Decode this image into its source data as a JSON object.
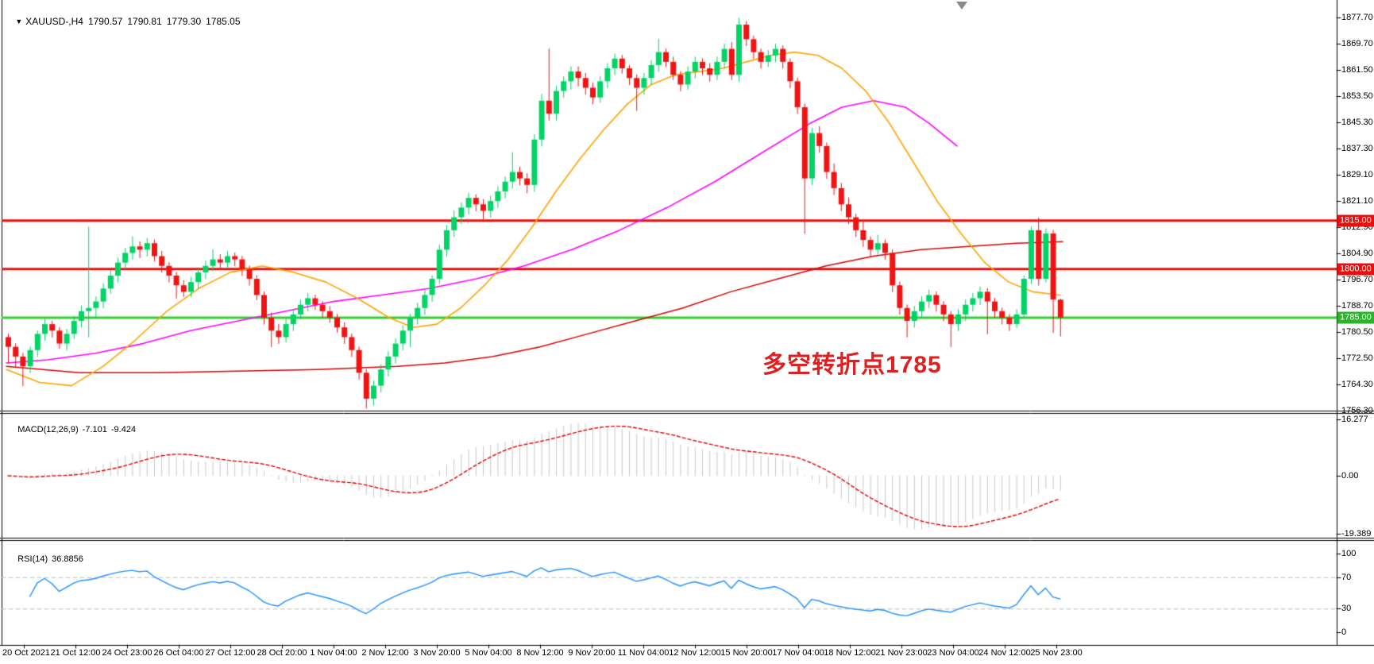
{
  "header": {
    "symbol_period": "XAUUSD-,H4",
    "open": "1790.57",
    "high": "1790.81",
    "low": "1779.30",
    "close": "1785.05"
  },
  "annotation": {
    "text": "多空转折点1785",
    "color": "#de2020"
  },
  "indicators": {
    "macd": {
      "label": "MACD(12,26,9)",
      "main_value": "-7.101",
      "signal_value": "-9.424",
      "scale_max": "16.277",
      "scale_zero": "0.00",
      "scale_min": "-19.389"
    },
    "rsi": {
      "label": "RSI(14)",
      "value": "36.8856",
      "scale": [
        "100",
        "70",
        "30",
        "0"
      ],
      "level_values": [
        70,
        30
      ]
    }
  },
  "price_axis": {
    "ticks": [
      "1877.70",
      "1869.70",
      "1861.50",
      "1853.50",
      "1845.30",
      "1837.30",
      "1829.10",
      "1821.10",
      "1812.90",
      "1804.90",
      "1796.70",
      "1788.70",
      "1780.50",
      "1772.50",
      "1764.30",
      "1756.30"
    ],
    "values": [
      1877.7,
      1869.7,
      1861.5,
      1853.5,
      1845.3,
      1837.3,
      1829.1,
      1821.1,
      1812.9,
      1804.9,
      1796.7,
      1788.7,
      1780.5,
      1772.5,
      1764.3,
      1756.3
    ]
  },
  "time_axis": {
    "labels": [
      "20 Oct 2021",
      "21 Oct 12:00",
      "24 Oct 23:00",
      "26 Oct 04:00",
      "27 Oct 12:00",
      "28 Oct 20:00",
      "1 Nov 04:00",
      "2 Nov 12:00",
      "3 Nov 20:00",
      "5 Nov 04:00",
      "8 Nov 12:00",
      "9 Nov 20:00",
      "11 Nov 04:00",
      "12 Nov 12:00",
      "15 Nov 20:00",
      "17 Nov 04:00",
      "18 Nov 12:00",
      "21 Nov 23:00",
      "23 Nov 04:00",
      "24 Nov 12:00",
      "25 Nov 23:00"
    ]
  },
  "hlines": [
    {
      "price": 1815.0,
      "label": "1815.00",
      "line_color": "#ef0e0e",
      "badge_color": "#e80f0f"
    },
    {
      "price": 1800.0,
      "label": "1800.00",
      "line_color": "#ef0e0e",
      "badge_color": "#e80f0f"
    },
    {
      "price": 1785.0,
      "label": "1785.00",
      "line_color": "#30d030",
      "badge_color": "#2eb12e"
    }
  ],
  "colors": {
    "bull": "#00d465",
    "bear": "#ef1414",
    "ma_fast": "#ffa400",
    "ma_mid": "#ff00ff",
    "ma_slow": "#d40404",
    "macd_hist": "#c8c8c8",
    "macd_signal": "#e00000",
    "rsi_line": "#1e90ff",
    "rsi_levels": "#bdbdbd",
    "axis": "#000000",
    "background": "#ffffff"
  },
  "chart_data": {
    "type": "candlestick",
    "symbol": "XAUUSD-",
    "timeframe": "H4",
    "ylim": [
      1756.3,
      1877.7
    ],
    "macd_ylim": [
      -19.389,
      16.277
    ],
    "rsi_ylim": [
      0,
      100
    ],
    "candles": [
      [
        1779,
        1780,
        1771,
        1776
      ],
      [
        1776,
        1777,
        1770,
        1773
      ],
      [
        1773,
        1774,
        1764,
        1770
      ],
      [
        1770,
        1776,
        1768,
        1775
      ],
      [
        1775,
        1781,
        1773,
        1780
      ],
      [
        1780,
        1784.5,
        1778,
        1783
      ],
      [
        1783,
        1784,
        1779,
        1781
      ],
      [
        1781,
        1782,
        1775.5,
        1777
      ],
      [
        1777,
        1781.5,
        1775,
        1780
      ],
      [
        1780,
        1785.5,
        1778.5,
        1784
      ],
      [
        1784,
        1788.5,
        1782,
        1787
      ],
      [
        1787,
        1813,
        1779,
        1788
      ],
      [
        1788,
        1791.5,
        1785,
        1790
      ],
      [
        1790,
        1795.5,
        1788,
        1794
      ],
      [
        1794,
        1799.5,
        1792.5,
        1798
      ],
      [
        1798,
        1803.5,
        1796,
        1802
      ],
      [
        1802,
        1806.5,
        1800,
        1805
      ],
      [
        1805,
        1810,
        1803,
        1807
      ],
      [
        1807,
        1808.5,
        1803.5,
        1806
      ],
      [
        1806,
        1809.5,
        1804,
        1808
      ],
      [
        1808,
        1809,
        1802.5,
        1804
      ],
      [
        1804,
        1805.5,
        1799,
        1801
      ],
      [
        1801,
        1802,
        1796,
        1798
      ],
      [
        1798,
        1799,
        1791,
        1795
      ],
      [
        1795,
        1796.5,
        1791.5,
        1793
      ],
      [
        1793,
        1797.5,
        1791.5,
        1796
      ],
      [
        1796,
        1800.5,
        1794,
        1799
      ],
      [
        1799,
        1802.5,
        1797,
        1801
      ],
      [
        1801,
        1806,
        1799.5,
        1803
      ],
      [
        1803,
        1804.5,
        1800,
        1802
      ],
      [
        1802,
        1805.5,
        1800.5,
        1804
      ],
      [
        1804,
        1805,
        1801,
        1803
      ],
      [
        1803,
        1804,
        1798,
        1800
      ],
      [
        1800,
        1801,
        1795,
        1797
      ],
      [
        1797,
        1798,
        1790.5,
        1792
      ],
      [
        1792,
        1793,
        1783,
        1785
      ],
      [
        1785,
        1786.5,
        1776,
        1781
      ],
      [
        1781,
        1783,
        1777,
        1779
      ],
      [
        1779,
        1784.5,
        1777.5,
        1783
      ],
      [
        1783,
        1787.5,
        1781,
        1786
      ],
      [
        1786,
        1790.5,
        1784.5,
        1789
      ],
      [
        1789,
        1792.5,
        1787,
        1791
      ],
      [
        1791,
        1792,
        1787.5,
        1789
      ],
      [
        1789,
        1790,
        1785,
        1787
      ],
      [
        1787,
        1788.5,
        1783.5,
        1785
      ],
      [
        1785,
        1786,
        1780.5,
        1782
      ],
      [
        1782,
        1783.5,
        1777,
        1779
      ],
      [
        1779,
        1780,
        1773,
        1775
      ],
      [
        1775,
        1776,
        1766,
        1768
      ],
      [
        1768,
        1769,
        1757,
        1760
      ],
      [
        1760,
        1765.5,
        1758,
        1764
      ],
      [
        1764,
        1770.5,
        1762,
        1769
      ],
      [
        1769,
        1774.5,
        1767,
        1773
      ],
      [
        1773,
        1778.5,
        1771,
        1777
      ],
      [
        1777,
        1782.5,
        1775,
        1781
      ],
      [
        1781,
        1786,
        1776,
        1785
      ],
      [
        1785,
        1789.5,
        1783,
        1788
      ],
      [
        1788,
        1793.5,
        1786,
        1792
      ],
      [
        1792,
        1798,
        1790,
        1797
      ],
      [
        1797,
        1807.5,
        1795.5,
        1806
      ],
      [
        1806,
        1813.5,
        1804,
        1812
      ],
      [
        1812,
        1818,
        1810,
        1816
      ],
      [
        1816,
        1820.5,
        1814,
        1819
      ],
      [
        1819,
        1823.5,
        1817,
        1822
      ],
      [
        1822,
        1823,
        1818,
        1820
      ],
      [
        1820,
        1821.5,
        1815.5,
        1818
      ],
      [
        1818,
        1822.5,
        1816,
        1821
      ],
      [
        1821,
        1825.5,
        1819,
        1824
      ],
      [
        1824,
        1828.5,
        1822,
        1827
      ],
      [
        1827,
        1836,
        1825,
        1830
      ],
      [
        1830,
        1831.5,
        1826,
        1828
      ],
      [
        1828,
        1829.5,
        1823.5,
        1826
      ],
      [
        1826,
        1841.5,
        1824,
        1840
      ],
      [
        1840,
        1854,
        1838,
        1852
      ],
      [
        1852,
        1868,
        1846,
        1848
      ],
      [
        1848,
        1856.5,
        1846,
        1855
      ],
      [
        1855,
        1859.5,
        1853,
        1858
      ],
      [
        1858,
        1862.5,
        1855.5,
        1861
      ],
      [
        1861,
        1862.5,
        1856.5,
        1859
      ],
      [
        1859,
        1860.5,
        1854,
        1856
      ],
      [
        1856,
        1857.5,
        1851,
        1853
      ],
      [
        1853,
        1859.5,
        1851.5,
        1858
      ],
      [
        1858,
        1863.5,
        1856,
        1862
      ],
      [
        1862,
        1866.5,
        1860,
        1865
      ],
      [
        1865,
        1866,
        1860.5,
        1862
      ],
      [
        1862,
        1863,
        1857,
        1859
      ],
      [
        1859,
        1860,
        1849,
        1856
      ],
      [
        1856,
        1860.5,
        1854,
        1859
      ],
      [
        1859,
        1864.5,
        1857,
        1863
      ],
      [
        1863,
        1871,
        1861,
        1867
      ],
      [
        1867,
        1868,
        1862.5,
        1864
      ],
      [
        1864,
        1865.5,
        1858.5,
        1860
      ],
      [
        1860,
        1861,
        1855,
        1857
      ],
      [
        1857,
        1862.5,
        1855.5,
        1861
      ],
      [
        1861,
        1865.5,
        1859,
        1864
      ],
      [
        1864,
        1865,
        1860,
        1862
      ],
      [
        1862,
        1863.5,
        1858,
        1860
      ],
      [
        1860,
        1865.5,
        1858.5,
        1864
      ],
      [
        1864,
        1869.5,
        1862,
        1868
      ],
      [
        1868,
        1870,
        1858.5,
        1860
      ],
      [
        1860,
        1877.5,
        1858,
        1875.5
      ],
      [
        1875.5,
        1876.5,
        1869,
        1871
      ],
      [
        1871,
        1872,
        1865,
        1867
      ],
      [
        1867,
        1868,
        1862,
        1864
      ],
      [
        1864,
        1867.5,
        1862.5,
        1866
      ],
      [
        1866,
        1869.5,
        1864,
        1868
      ],
      [
        1868,
        1869,
        1862,
        1864
      ],
      [
        1864,
        1865,
        1856,
        1858
      ],
      [
        1858,
        1859,
        1848,
        1850
      ],
      [
        1850,
        1851,
        1811,
        1828
      ],
      [
        1828,
        1843.5,
        1826,
        1842
      ],
      [
        1842,
        1844,
        1836,
        1838
      ],
      [
        1838,
        1839,
        1828,
        1830
      ],
      [
        1830,
        1832.5,
        1823,
        1825
      ],
      [
        1825,
        1826.5,
        1818,
        1820
      ],
      [
        1820,
        1822,
        1814,
        1816
      ],
      [
        1816,
        1817,
        1810,
        1812
      ],
      [
        1812,
        1814.5,
        1807,
        1809
      ],
      [
        1809,
        1810,
        1804,
        1806
      ],
      [
        1806,
        1810.5,
        1804.5,
        1808
      ],
      [
        1808,
        1809,
        1803,
        1805
      ],
      [
        1805,
        1806,
        1793,
        1795
      ],
      [
        1795,
        1796,
        1786,
        1788
      ],
      [
        1788,
        1789,
        1779,
        1784
      ],
      [
        1784,
        1788.5,
        1782,
        1787
      ],
      [
        1787,
        1791.5,
        1785,
        1790
      ],
      [
        1790,
        1793.5,
        1788,
        1792
      ],
      [
        1792,
        1793,
        1787,
        1789
      ],
      [
        1789,
        1790,
        1784,
        1786
      ],
      [
        1786,
        1787,
        1776,
        1783
      ],
      [
        1783,
        1787.5,
        1781,
        1786
      ],
      [
        1786,
        1790.5,
        1784,
        1789
      ],
      [
        1789,
        1792.5,
        1787,
        1791
      ],
      [
        1791,
        1794.5,
        1789,
        1793
      ],
      [
        1793,
        1794,
        1780,
        1790
      ],
      [
        1790,
        1791,
        1785,
        1787
      ],
      [
        1787,
        1788,
        1783,
        1785
      ],
      [
        1785,
        1786,
        1781,
        1783
      ],
      [
        1783,
        1787.5,
        1782,
        1786
      ],
      [
        1786,
        1798,
        1785,
        1797
      ],
      [
        1797,
        1813,
        1795.5,
        1812
      ],
      [
        1812,
        1815.8,
        1795,
        1797
      ],
      [
        1797,
        1812.5,
        1796,
        1811
      ],
      [
        1811,
        1812,
        1780.4,
        1790.6
      ],
      [
        1790.57,
        1790.81,
        1779.3,
        1785.05
      ]
    ],
    "ma_fast_points": [
      [
        8,
        1769
      ],
      [
        50,
        1765
      ],
      [
        90,
        1764
      ],
      [
        130,
        1770
      ],
      [
        170,
        1778
      ],
      [
        210,
        1787
      ],
      [
        250,
        1794
      ],
      [
        290,
        1799
      ],
      [
        330,
        1801
      ],
      [
        370,
        1799
      ],
      [
        410,
        1796
      ],
      [
        450,
        1791
      ],
      [
        490,
        1785
      ],
      [
        520,
        1782
      ],
      [
        550,
        1783
      ],
      [
        580,
        1788
      ],
      [
        610,
        1795
      ],
      [
        640,
        1803
      ],
      [
        670,
        1813
      ],
      [
        700,
        1824
      ],
      [
        730,
        1834
      ],
      [
        760,
        1843
      ],
      [
        790,
        1851
      ],
      [
        820,
        1857
      ],
      [
        850,
        1860
      ],
      [
        880,
        1861
      ],
      [
        910,
        1862
      ],
      [
        940,
        1864
      ],
      [
        970,
        1866
      ],
      [
        1000,
        1867
      ],
      [
        1030,
        1866
      ],
      [
        1060,
        1862
      ],
      [
        1090,
        1855
      ],
      [
        1120,
        1845
      ],
      [
        1150,
        1833
      ],
      [
        1180,
        1821
      ],
      [
        1210,
        1811
      ],
      [
        1240,
        1802
      ],
      [
        1270,
        1796
      ],
      [
        1300,
        1793
      ],
      [
        1335,
        1792
      ]
    ],
    "ma_mid_points": [
      [
        8,
        1771
      ],
      [
        60,
        1772
      ],
      [
        120,
        1774
      ],
      [
        180,
        1777
      ],
      [
        240,
        1781
      ],
      [
        300,
        1784
      ],
      [
        360,
        1787
      ],
      [
        420,
        1790
      ],
      [
        480,
        1792
      ],
      [
        540,
        1794
      ],
      [
        600,
        1797
      ],
      [
        660,
        1801
      ],
      [
        720,
        1806
      ],
      [
        780,
        1812
      ],
      [
        840,
        1819
      ],
      [
        900,
        1827
      ],
      [
        960,
        1836
      ],
      [
        1020,
        1845
      ],
      [
        1060,
        1850
      ],
      [
        1100,
        1852
      ],
      [
        1140,
        1850
      ],
      [
        1170,
        1845
      ],
      [
        1205,
        1838
      ]
    ],
    "ma_slow_points": [
      [
        8,
        1770
      ],
      [
        100,
        1768
      ],
      [
        200,
        1768
      ],
      [
        300,
        1768.5
      ],
      [
        400,
        1769
      ],
      [
        500,
        1770
      ],
      [
        560,
        1771
      ],
      [
        620,
        1773
      ],
      [
        680,
        1776
      ],
      [
        740,
        1780
      ],
      [
        800,
        1784
      ],
      [
        860,
        1788
      ],
      [
        920,
        1793
      ],
      [
        980,
        1797
      ],
      [
        1040,
        1801
      ],
      [
        1100,
        1804
      ],
      [
        1160,
        1806
      ],
      [
        1220,
        1807
      ],
      [
        1280,
        1808
      ],
      [
        1338,
        1808.5
      ]
    ]
  }
}
